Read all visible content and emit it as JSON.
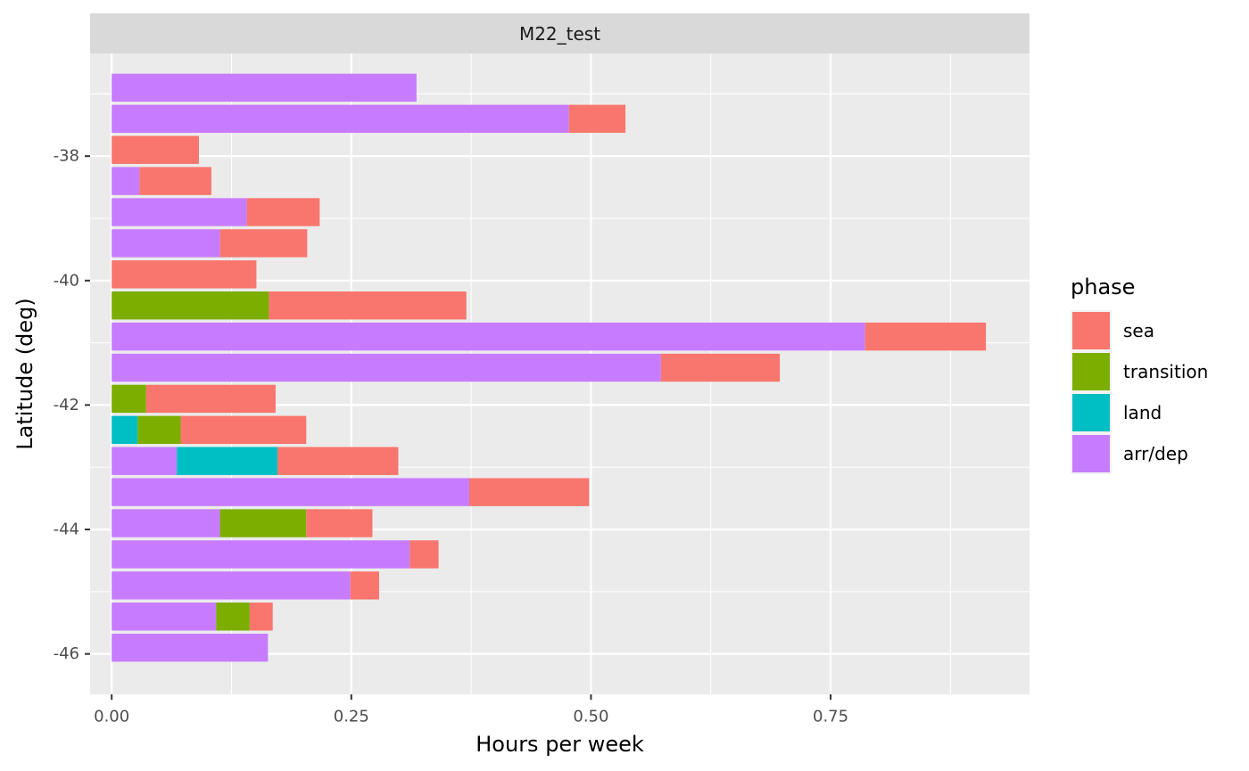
{
  "chart_data": {
    "type": "bar",
    "orientation": "horizontal",
    "stacked": true,
    "facet": "M22_test",
    "xlabel": "Hours per week",
    "ylabel": "Latitude (deg)",
    "xlim": [
      -0.0225,
      0.9575
    ],
    "ylim": [
      -46.65,
      -36.35
    ],
    "x_ticks": [
      0.0,
      0.25,
      0.5,
      0.75
    ],
    "x_tick_labels": [
      "0.00",
      "0.25",
      "0.50",
      "0.75"
    ],
    "y_ticks": [
      -38,
      -40,
      -42,
      -44,
      -46
    ],
    "y_tick_labels": [
      "-38",
      "-40",
      "-42",
      "-44",
      "-46"
    ],
    "grid": true,
    "legend_title": "phase",
    "legend_position": "right",
    "stack_order": [
      "arr/dep",
      "land",
      "transition",
      "sea"
    ],
    "series_meta": [
      {
        "name": "sea",
        "color": "#F8766D"
      },
      {
        "name": "transition",
        "color": "#7CAE00"
      },
      {
        "name": "land",
        "color": "#00BFC4"
      },
      {
        "name": "arr/dep",
        "color": "#C77CFF"
      }
    ],
    "categories": [
      -36.9,
      -37.4,
      -37.9,
      -38.4,
      -38.9,
      -39.4,
      -39.9,
      -40.4,
      -40.9,
      -41.4,
      -41.9,
      -42.4,
      -42.9,
      -43.4,
      -43.9,
      -44.4,
      -44.9,
      -45.4,
      -45.9
    ],
    "series": [
      {
        "name": "arr/dep",
        "values": [
          0.318,
          0.477,
          0,
          0.029,
          0.141,
          0.113,
          0,
          0,
          0.786,
          0.573,
          0,
          0,
          0.068,
          0.373,
          0.113,
          0.311,
          0.249,
          0.109,
          0.163
        ]
      },
      {
        "name": "land",
        "values": [
          0,
          0,
          0,
          0,
          0,
          0,
          0,
          0,
          0,
          0,
          0,
          0.027,
          0.105,
          0,
          0,
          0,
          0,
          0,
          0
        ]
      },
      {
        "name": "transition",
        "values": [
          0,
          0,
          0,
          0,
          0,
          0,
          0,
          0.164,
          0,
          0,
          0.036,
          0.045,
          0,
          0,
          0.09,
          0,
          0,
          0.035,
          0
        ]
      },
      {
        "name": "sea",
        "values": [
          0,
          0.059,
          0.091,
          0.075,
          0.076,
          0.091,
          0.151,
          0.206,
          0.126,
          0.124,
          0.135,
          0.131,
          0.126,
          0.125,
          0.069,
          0.03,
          0.03,
          0.024,
          0
        ]
      }
    ]
  }
}
